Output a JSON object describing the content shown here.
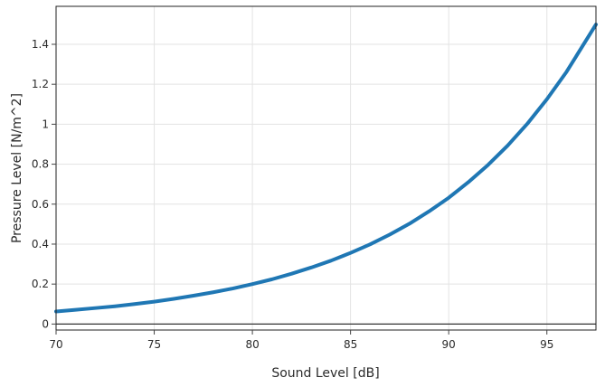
{
  "chart_data": {
    "type": "line",
    "title": "",
    "xlabel": "Sound Level [dB]",
    "ylabel": "Pressure Level [N/m^2]",
    "xlim": [
      70,
      97.5
    ],
    "ylim": [
      -0.03,
      1.59
    ],
    "xticks": [
      70,
      75,
      80,
      85,
      90,
      95
    ],
    "xtick_labels": [
      "70",
      "75",
      "80",
      "85",
      "90",
      "95"
    ],
    "yticks": [
      0,
      0.2,
      0.4,
      0.6,
      0.8,
      1,
      1.2,
      1.4
    ],
    "ytick_labels": [
      "0",
      "0.2",
      "0.4",
      "0.6",
      "0.8",
      "1",
      "1.2",
      "1.4"
    ],
    "grid": true,
    "series": [
      {
        "color": "#1f77b4",
        "x": [
          70,
          71,
          72,
          73,
          74,
          75,
          76,
          77,
          78,
          79,
          80,
          81,
          82,
          83,
          84,
          85,
          86,
          87,
          88,
          89,
          90,
          91,
          92,
          93,
          94,
          95,
          96,
          97.5
        ],
        "y": [
          0.063,
          0.071,
          0.08,
          0.089,
          0.1,
          0.112,
          0.126,
          0.142,
          0.159,
          0.178,
          0.2,
          0.224,
          0.252,
          0.283,
          0.317,
          0.356,
          0.399,
          0.448,
          0.502,
          0.564,
          0.632,
          0.71,
          0.796,
          0.893,
          1.002,
          1.125,
          1.262,
          1.499
        ]
      }
    ]
  }
}
